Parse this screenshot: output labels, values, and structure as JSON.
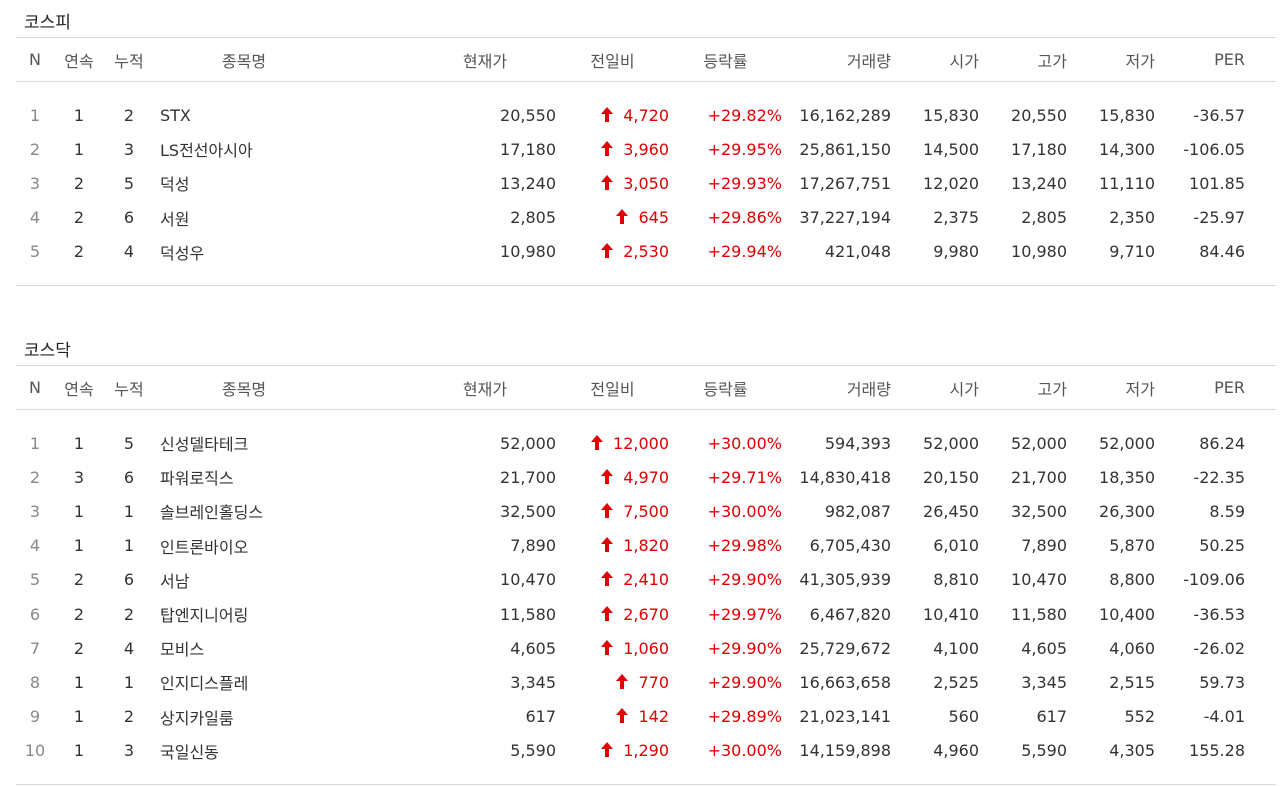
{
  "headers": [
    "N",
    "연속",
    "누적",
    "종목명",
    "현재가",
    "전일비",
    "등락률",
    "거래량",
    "시가",
    "고가",
    "저가",
    "PER"
  ],
  "colors": {
    "up": "#e00000",
    "border": "#d8d8d8"
  },
  "icons": {
    "change": "up-arrow-icon"
  },
  "kospi": {
    "title": "코스피",
    "rows": [
      {
        "n": "1",
        "streak": "1",
        "total": "2",
        "name": "STX",
        "price": "20,550",
        "change": "4,720",
        "rate": "+29.82%",
        "volume": "16,162,289",
        "open": "15,830",
        "high": "20,550",
        "low": "15,830",
        "per": "-36.57"
      },
      {
        "n": "2",
        "streak": "1",
        "total": "3",
        "name": "LS전선아시아",
        "price": "17,180",
        "change": "3,960",
        "rate": "+29.95%",
        "volume": "25,861,150",
        "open": "14,500",
        "high": "17,180",
        "low": "14,300",
        "per": "-106.05"
      },
      {
        "n": "3",
        "streak": "2",
        "total": "5",
        "name": "덕성",
        "price": "13,240",
        "change": "3,050",
        "rate": "+29.93%",
        "volume": "17,267,751",
        "open": "12,020",
        "high": "13,240",
        "low": "11,110",
        "per": "101.85"
      },
      {
        "n": "4",
        "streak": "2",
        "total": "6",
        "name": "서원",
        "price": "2,805",
        "change": "645",
        "rate": "+29.86%",
        "volume": "37,227,194",
        "open": "2,375",
        "high": "2,805",
        "low": "2,350",
        "per": "-25.97"
      },
      {
        "n": "5",
        "streak": "2",
        "total": "4",
        "name": "덕성우",
        "price": "10,980",
        "change": "2,530",
        "rate": "+29.94%",
        "volume": "421,048",
        "open": "9,980",
        "high": "10,980",
        "low": "9,710",
        "per": "84.46"
      }
    ]
  },
  "kosdaq": {
    "title": "코스닥",
    "rows": [
      {
        "n": "1",
        "streak": "1",
        "total": "5",
        "name": "신성델타테크",
        "price": "52,000",
        "change": "12,000",
        "rate": "+30.00%",
        "volume": "594,393",
        "open": "52,000",
        "high": "52,000",
        "low": "52,000",
        "per": "86.24"
      },
      {
        "n": "2",
        "streak": "3",
        "total": "6",
        "name": "파워로직스",
        "price": "21,700",
        "change": "4,970",
        "rate": "+29.71%",
        "volume": "14,830,418",
        "open": "20,150",
        "high": "21,700",
        "low": "18,350",
        "per": "-22.35"
      },
      {
        "n": "3",
        "streak": "1",
        "total": "1",
        "name": "솔브레인홀딩스",
        "price": "32,500",
        "change": "7,500",
        "rate": "+30.00%",
        "volume": "982,087",
        "open": "26,450",
        "high": "32,500",
        "low": "26,300",
        "per": "8.59"
      },
      {
        "n": "4",
        "streak": "1",
        "total": "1",
        "name": "인트론바이오",
        "price": "7,890",
        "change": "1,820",
        "rate": "+29.98%",
        "volume": "6,705,430",
        "open": "6,010",
        "high": "7,890",
        "low": "5,870",
        "per": "50.25"
      },
      {
        "n": "5",
        "streak": "2",
        "total": "6",
        "name": "서남",
        "price": "10,470",
        "change": "2,410",
        "rate": "+29.90%",
        "volume": "41,305,939",
        "open": "8,810",
        "high": "10,470",
        "low": "8,800",
        "per": "-109.06"
      },
      {
        "n": "6",
        "streak": "2",
        "total": "2",
        "name": "탑엔지니어링",
        "price": "11,580",
        "change": "2,670",
        "rate": "+29.97%",
        "volume": "6,467,820",
        "open": "10,410",
        "high": "11,580",
        "low": "10,400",
        "per": "-36.53"
      },
      {
        "n": "7",
        "streak": "2",
        "total": "4",
        "name": "모비스",
        "price": "4,605",
        "change": "1,060",
        "rate": "+29.90%",
        "volume": "25,729,672",
        "open": "4,100",
        "high": "4,605",
        "low": "4,060",
        "per": "-26.02"
      },
      {
        "n": "8",
        "streak": "1",
        "total": "1",
        "name": "인지디스플레",
        "price": "3,345",
        "change": "770",
        "rate": "+29.90%",
        "volume": "16,663,658",
        "open": "2,525",
        "high": "3,345",
        "low": "2,515",
        "per": "59.73"
      },
      {
        "n": "9",
        "streak": "1",
        "total": "2",
        "name": "상지카일룸",
        "price": "617",
        "change": "142",
        "rate": "+29.89%",
        "volume": "21,023,141",
        "open": "560",
        "high": "617",
        "low": "552",
        "per": "-4.01"
      },
      {
        "n": "10",
        "streak": "1",
        "total": "3",
        "name": "국일신동",
        "price": "5,590",
        "change": "1,290",
        "rate": "+30.00%",
        "volume": "14,159,898",
        "open": "4,960",
        "high": "5,590",
        "low": "4,305",
        "per": "155.28"
      }
    ]
  }
}
